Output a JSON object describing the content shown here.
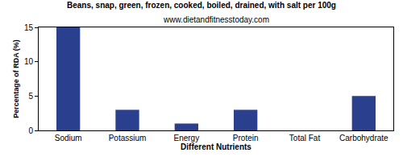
{
  "chart_data": {
    "type": "bar",
    "title": "Beans, snap, green, frozen, cooked, boiled, drained, with salt per 100g",
    "subtitle": "www.dietandfitnesstoday.com",
    "x_label": "Different Nutrients",
    "y_label": "Percentage of RDA (%)",
    "categories": [
      "Sodium",
      "Potassium",
      "Energy",
      "Protein",
      "Total Fat",
      "Carbohydrate"
    ],
    "values": [
      15,
      3,
      1,
      3,
      0,
      5
    ],
    "color": "#2b3f8f",
    "ylim": [
      0,
      15
    ],
    "yticks": [
      0,
      5,
      10,
      15
    ],
    "grid": false
  }
}
